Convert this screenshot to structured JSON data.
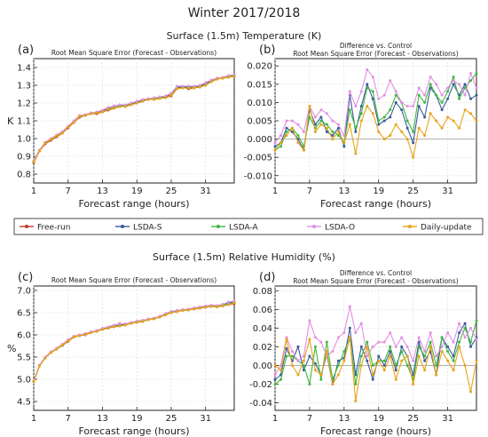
{
  "figure_title": "Winter 2017/2018",
  "sections": [
    {
      "title": "Surface (1.5m) Temperature (K)"
    },
    {
      "title": "Surface (1.5m) Relative Humidity (%)"
    }
  ],
  "x_axis_label": "Forecast range (hours)",
  "colors": {
    "Free-run": "#c0392b",
    "LSDA-S": "#3c5a9a",
    "LSDA-A": "#3fb83f",
    "LSDA-O": "#e290e2",
    "Daily-update": "#e8a317"
  },
  "legend": [
    "Free-run",
    "LSDA-S",
    "LSDA-A",
    "LSDA-O",
    "Daily-update"
  ],
  "chart_data": [
    {
      "panel": "(a)",
      "type": "line",
      "title": "Root Mean Square Error (Forecast - Observations)",
      "subtitle": "",
      "xlabel": "Forecast range (hours)",
      "ylabel": "K",
      "xlim": [
        1,
        36
      ],
      "ylim": [
        0.75,
        1.45
      ],
      "xticks": [
        1,
        7,
        13,
        19,
        25,
        31
      ],
      "yticks": [
        0.8,
        0.9,
        1.0,
        1.1,
        1.2,
        1.3,
        1.4
      ],
      "ytick_labels": [
        "0.8",
        "0.9",
        "1.0",
        "1.1",
        "1.2",
        "1.3",
        "1.4"
      ],
      "grid": true,
      "zero_line": false,
      "x": [
        1,
        2,
        3,
        4,
        5,
        6,
        7,
        8,
        9,
        10,
        11,
        12,
        13,
        14,
        15,
        16,
        17,
        18,
        19,
        20,
        21,
        22,
        23,
        24,
        25,
        26,
        27,
        28,
        29,
        30,
        31,
        32,
        33,
        34,
        35,
        36
      ],
      "series": [
        {
          "name": "Free-run",
          "values": [
            0.865,
            0.93,
            0.97,
            0.99,
            1.01,
            1.03,
            1.06,
            1.09,
            1.12,
            1.13,
            1.14,
            1.14,
            1.15,
            1.16,
            1.17,
            1.18,
            1.18,
            1.19,
            1.2,
            1.21,
            1.22,
            1.22,
            1.23,
            1.23,
            1.24,
            1.28,
            1.29,
            1.28,
            1.285,
            1.29,
            1.3,
            1.32,
            1.335,
            1.34,
            1.345,
            1.35
          ]
        },
        {
          "name": "LSDA-S",
          "values": [
            0.87,
            0.93,
            0.975,
            0.995,
            1.015,
            1.035,
            1.065,
            1.095,
            1.125,
            1.13,
            1.14,
            1.145,
            1.155,
            1.17,
            1.175,
            1.185,
            1.185,
            1.195,
            1.205,
            1.215,
            1.22,
            1.225,
            1.23,
            1.235,
            1.25,
            1.29,
            1.29,
            1.29,
            1.29,
            1.295,
            1.31,
            1.325,
            1.335,
            1.34,
            1.35,
            1.36
          ]
        },
        {
          "name": "LSDA-A",
          "values": [
            0.87,
            0.935,
            0.975,
            0.995,
            1.015,
            1.035,
            1.065,
            1.095,
            1.125,
            1.13,
            1.14,
            1.145,
            1.15,
            1.165,
            1.175,
            1.18,
            1.185,
            1.19,
            1.2,
            1.21,
            1.22,
            1.225,
            1.23,
            1.23,
            1.245,
            1.285,
            1.285,
            1.285,
            1.29,
            1.29,
            1.305,
            1.32,
            1.335,
            1.34,
            1.35,
            1.355
          ]
        },
        {
          "name": "LSDA-O",
          "values": [
            0.875,
            0.935,
            0.98,
            1.0,
            1.02,
            1.04,
            1.07,
            1.1,
            1.13,
            1.135,
            1.145,
            1.15,
            1.16,
            1.175,
            1.185,
            1.19,
            1.19,
            1.2,
            1.21,
            1.22,
            1.225,
            1.23,
            1.235,
            1.24,
            1.255,
            1.295,
            1.295,
            1.295,
            1.295,
            1.3,
            1.315,
            1.33,
            1.34,
            1.345,
            1.355,
            1.36
          ]
        },
        {
          "name": "Daily-update",
          "values": [
            0.87,
            0.93,
            0.975,
            0.995,
            1.015,
            1.03,
            1.065,
            1.09,
            1.125,
            1.13,
            1.14,
            1.145,
            1.15,
            1.165,
            1.17,
            1.18,
            1.18,
            1.19,
            1.2,
            1.21,
            1.22,
            1.22,
            1.225,
            1.23,
            1.245,
            1.28,
            1.285,
            1.285,
            1.285,
            1.29,
            1.3,
            1.32,
            1.335,
            1.34,
            1.345,
            1.35
          ]
        }
      ]
    },
    {
      "panel": "(b)",
      "type": "line",
      "title": "Difference vs. Control",
      "subtitle": "Root Mean Square Error (Forecast - Observations)",
      "xlabel": "Forecast range (hours)",
      "ylabel": "",
      "xlim": [
        1,
        36
      ],
      "ylim": [
        -0.012,
        0.022
      ],
      "xticks": [
        1,
        7,
        13,
        19,
        25,
        31
      ],
      "yticks": [
        -0.01,
        -0.005,
        0.0,
        0.005,
        0.01,
        0.015,
        0.02
      ],
      "ytick_labels": [
        "-0.010",
        "-0.005",
        "0.000",
        "0.005",
        "0.010",
        "0.015",
        "0.020"
      ],
      "grid": true,
      "zero_line": true,
      "x": [
        1,
        2,
        3,
        4,
        5,
        6,
        7,
        8,
        9,
        10,
        11,
        12,
        13,
        14,
        15,
        16,
        17,
        18,
        19,
        20,
        21,
        22,
        23,
        24,
        25,
        26,
        27,
        28,
        29,
        30,
        31,
        32,
        33,
        34,
        35,
        36
      ],
      "series": [
        {
          "name": "LSDA-S",
          "values": [
            -0.002,
            -0.001,
            0.003,
            0.002,
            0.0,
            -0.003,
            0.008,
            0.004,
            0.006,
            0.002,
            0.001,
            0.003,
            -0.002,
            0.012,
            0.002,
            0.009,
            0.015,
            0.011,
            0.004,
            0.005,
            0.006,
            0.01,
            0.008,
            0.003,
            -0.001,
            0.009,
            0.006,
            0.014,
            0.012,
            0.008,
            0.011,
            0.015,
            0.012,
            0.015,
            0.011,
            0.012
          ]
        },
        {
          "name": "LSDA-A",
          "values": [
            -0.003,
            -0.002,
            0.002,
            0.003,
            0.001,
            -0.002,
            0.006,
            0.003,
            0.005,
            0.004,
            0.002,
            0.001,
            -0.001,
            0.008,
            0.003,
            0.007,
            0.014,
            0.013,
            0.005,
            0.006,
            0.008,
            0.012,
            0.01,
            0.005,
            0.002,
            0.012,
            0.01,
            0.015,
            0.012,
            0.01,
            0.013,
            0.017,
            0.011,
            0.014,
            0.016,
            0.018
          ]
        },
        {
          "name": "LSDA-O",
          "values": [
            -0.001,
            0.001,
            0.005,
            0.005,
            0.004,
            0.002,
            0.009,
            0.006,
            0.008,
            0.007,
            0.005,
            0.004,
            0.001,
            0.013,
            0.009,
            0.013,
            0.019,
            0.017,
            0.011,
            0.012,
            0.016,
            0.013,
            0.01,
            0.009,
            0.009,
            0.014,
            0.012,
            0.017,
            0.015,
            0.012,
            0.014,
            0.016,
            0.015,
            0.012,
            0.018,
            0.014
          ]
        },
        {
          "name": "Daily-update",
          "values": [
            -0.003,
            -0.001,
            0.001,
            0.003,
            -0.001,
            -0.003,
            0.009,
            0.002,
            0.004,
            0.003,
            0.0,
            0.002,
            -0.001,
            0.004,
            -0.004,
            0.005,
            0.009,
            0.007,
            0.002,
            0.0,
            0.001,
            0.004,
            0.002,
            0.0,
            -0.005,
            0.003,
            0.001,
            0.007,
            0.005,
            0.003,
            0.006,
            0.005,
            0.003,
            0.008,
            0.007,
            0.005
          ]
        }
      ]
    },
    {
      "panel": "(c)",
      "type": "line",
      "title": "Root Mean Square Error (Forecast - Observations)",
      "subtitle": "",
      "xlabel": "Forecast range (hours)",
      "ylabel": "%",
      "xlim": [
        1,
        36
      ],
      "ylim": [
        4.3,
        7.1
      ],
      "xticks": [
        1,
        7,
        13,
        19,
        25,
        31
      ],
      "yticks": [
        4.5,
        5.0,
        5.5,
        6.0,
        6.5,
        7.0
      ],
      "ytick_labels": [
        "4.5",
        "5.0",
        "5.5",
        "6.0",
        "6.5",
        "7.0"
      ],
      "grid": true,
      "zero_line": false,
      "x": [
        1,
        2,
        3,
        4,
        5,
        6,
        7,
        8,
        9,
        10,
        11,
        12,
        13,
        14,
        15,
        16,
        17,
        18,
        19,
        20,
        21,
        22,
        23,
        24,
        25,
        26,
        27,
        28,
        29,
        30,
        31,
        32,
        33,
        34,
        35,
        36
      ],
      "series": [
        {
          "name": "Free-run",
          "values": [
            4.95,
            5.3,
            5.48,
            5.6,
            5.68,
            5.76,
            5.85,
            5.95,
            5.98,
            6.0,
            6.05,
            6.08,
            6.12,
            6.15,
            6.18,
            6.2,
            6.22,
            6.26,
            6.28,
            6.3,
            6.34,
            6.36,
            6.4,
            6.45,
            6.5,
            6.52,
            6.55,
            6.56,
            6.58,
            6.6,
            6.62,
            6.64,
            6.63,
            6.65,
            6.68,
            6.7
          ]
        },
        {
          "name": "LSDA-S",
          "values": [
            4.96,
            5.31,
            5.49,
            5.61,
            5.69,
            5.77,
            5.87,
            5.96,
            5.99,
            6.02,
            6.06,
            6.09,
            6.14,
            6.16,
            6.2,
            6.22,
            6.24,
            6.27,
            6.3,
            6.32,
            6.35,
            6.37,
            6.41,
            6.46,
            6.52,
            6.54,
            6.56,
            6.57,
            6.6,
            6.62,
            6.64,
            6.66,
            6.65,
            6.68,
            6.72,
            6.74
          ]
        },
        {
          "name": "LSDA-A",
          "values": [
            4.95,
            5.3,
            5.48,
            5.6,
            5.68,
            5.76,
            5.86,
            5.95,
            5.98,
            6.01,
            6.05,
            6.08,
            6.13,
            6.15,
            6.19,
            6.21,
            6.23,
            6.26,
            6.29,
            6.31,
            6.34,
            6.36,
            6.4,
            6.45,
            6.51,
            6.53,
            6.55,
            6.56,
            6.59,
            6.61,
            6.63,
            6.65,
            6.64,
            6.67,
            6.7,
            6.72
          ]
        },
        {
          "name": "LSDA-O",
          "values": [
            4.97,
            5.32,
            5.5,
            5.62,
            5.7,
            5.79,
            5.89,
            5.97,
            6.0,
            6.03,
            6.07,
            6.1,
            6.15,
            6.18,
            6.22,
            6.26,
            6.25,
            6.28,
            6.31,
            6.33,
            6.36,
            6.38,
            6.42,
            6.48,
            6.53,
            6.55,
            6.57,
            6.58,
            6.61,
            6.63,
            6.65,
            6.67,
            6.66,
            6.69,
            6.74,
            6.76
          ]
        },
        {
          "name": "Daily-update",
          "values": [
            4.95,
            5.3,
            5.48,
            5.6,
            5.68,
            5.77,
            5.86,
            5.95,
            5.98,
            6.01,
            6.05,
            6.08,
            6.12,
            6.15,
            6.18,
            6.2,
            6.22,
            6.26,
            6.28,
            6.3,
            6.34,
            6.36,
            6.4,
            6.45,
            6.5,
            6.52,
            6.55,
            6.56,
            6.58,
            6.6,
            6.62,
            6.64,
            6.63,
            6.65,
            6.68,
            6.72
          ]
        }
      ]
    },
    {
      "panel": "(d)",
      "type": "line",
      "title": "Difference vs. Control",
      "subtitle": "Root Mean Square Error (Forecast - Observations)",
      "xlabel": "Forecast range (hours)",
      "ylabel": "",
      "xlim": [
        1,
        36
      ],
      "ylim": [
        -0.048,
        0.085
      ],
      "xticks": [
        1,
        7,
        13,
        19,
        25,
        31
      ],
      "yticks": [
        -0.04,
        -0.02,
        0.0,
        0.02,
        0.04,
        0.06,
        0.08
      ],
      "ytick_labels": [
        "-0.04",
        "-0.02",
        "0.00",
        "0.02",
        "0.04",
        "0.06",
        "0.08"
      ],
      "grid": true,
      "zero_line": true,
      "x": [
        1,
        2,
        3,
        4,
        5,
        6,
        7,
        8,
        9,
        10,
        11,
        12,
        13,
        14,
        15,
        16,
        17,
        18,
        19,
        20,
        21,
        22,
        23,
        24,
        25,
        26,
        27,
        28,
        29,
        30,
        31,
        32,
        33,
        34,
        35,
        36
      ],
      "series": [
        {
          "name": "LSDA-S",
          "values": [
            -0.015,
            -0.01,
            0.018,
            0.005,
            0.02,
            -0.005,
            0.01,
            0.002,
            -0.01,
            0.012,
            -0.02,
            0.005,
            0.008,
            0.04,
            -0.01,
            0.02,
            0.005,
            -0.015,
            0.01,
            0.0,
            0.015,
            -0.005,
            0.02,
            0.01,
            -0.01,
            0.025,
            0.005,
            0.015,
            -0.01,
            0.03,
            0.02,
            0.01,
            0.035,
            0.045,
            0.02,
            0.03
          ]
        },
        {
          "name": "LSDA-A",
          "values": [
            -0.02,
            -0.015,
            0.01,
            0.01,
            0.005,
            0.0,
            -0.02,
            0.02,
            -0.015,
            0.025,
            -0.015,
            0.0,
            0.015,
            0.03,
            -0.02,
            0.01,
            0.025,
            0.0,
            0.005,
            0.005,
            0.02,
            0.0,
            0.015,
            0.0,
            -0.015,
            0.02,
            0.01,
            0.025,
            0.0,
            0.03,
            0.015,
            0.005,
            0.025,
            0.04,
            0.025,
            0.048
          ]
        },
        {
          "name": "LSDA-O",
          "values": [
            -0.01,
            0.0,
            0.03,
            0.015,
            0.005,
            0.01,
            0.048,
            0.03,
            0.025,
            0.01,
            0.015,
            0.03,
            0.035,
            0.063,
            0.035,
            0.045,
            0.01,
            0.02,
            0.025,
            0.025,
            0.035,
            0.02,
            0.03,
            0.02,
            0.005,
            0.03,
            0.015,
            0.035,
            0.01,
            0.02,
            0.035,
            0.025,
            0.045,
            0.03,
            0.04,
            0.028
          ]
        },
        {
          "name": "Daily-update",
          "values": [
            0.0,
            -0.005,
            0.028,
            0.0,
            -0.01,
            0.005,
            0.028,
            -0.005,
            -0.01,
            0.015,
            -0.02,
            -0.01,
            0.005,
            0.03,
            -0.038,
            0.0,
            0.02,
            -0.01,
            0.005,
            -0.005,
            0.01,
            -0.015,
            0.005,
            0.01,
            -0.02,
            0.01,
            -0.005,
            0.02,
            -0.01,
            0.015,
            0.005,
            -0.005,
            0.02,
            0.0,
            -0.028,
            0.005
          ]
        }
      ]
    }
  ]
}
